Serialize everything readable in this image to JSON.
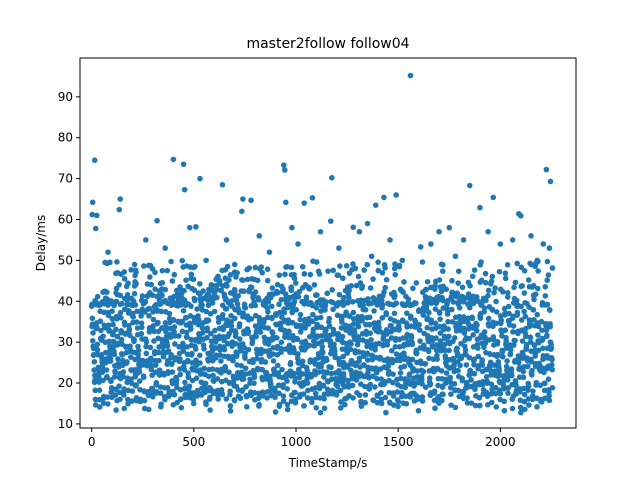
{
  "chart_data": {
    "type": "scatter",
    "title": "master2follow follow04",
    "xlabel": "TimeStamp/s",
    "ylabel": "Delay/ms",
    "xlim": [
      -57,
      2370
    ],
    "ylim": [
      9.0,
      99.5
    ],
    "x_ticks": [
      0,
      500,
      1000,
      1500,
      2000
    ],
    "y_ticks": [
      10,
      20,
      30,
      40,
      50,
      60,
      70,
      80,
      90
    ],
    "grid": false,
    "marker_color": "#1f77b4",
    "band": {
      "x_start": 0,
      "x_end": 2255,
      "period_s": 20,
      "y_low": 15,
      "y_high": 38,
      "note_density": "dense sawtooth band of points between roughly 15 and 42 ms"
    },
    "outliers": [
      {
        "x": 15,
        "y": 74.5
      },
      {
        "x": 5,
        "y": 64.2
      },
      {
        "x": 3,
        "y": 61.2
      },
      {
        "x": 25,
        "y": 61.0
      },
      {
        "x": 20,
        "y": 57.8
      },
      {
        "x": 140,
        "y": 65.0
      },
      {
        "x": 135,
        "y": 62.4
      },
      {
        "x": 400,
        "y": 74.7
      },
      {
        "x": 450,
        "y": 73.5
      },
      {
        "x": 455,
        "y": 67.3
      },
      {
        "x": 530,
        "y": 70.0
      },
      {
        "x": 640,
        "y": 68.5
      },
      {
        "x": 940,
        "y": 73.3
      },
      {
        "x": 945,
        "y": 72.1
      },
      {
        "x": 1175,
        "y": 70.2
      },
      {
        "x": 1560,
        "y": 95.2
      },
      {
        "x": 1490,
        "y": 66.0
      },
      {
        "x": 1430,
        "y": 65.4
      },
      {
        "x": 1850,
        "y": 68.3
      },
      {
        "x": 1965,
        "y": 65.4
      },
      {
        "x": 2225,
        "y": 72.2
      },
      {
        "x": 2245,
        "y": 69.3
      },
      {
        "x": 1080,
        "y": 65.3
      },
      {
        "x": 1040,
        "y": 64.0
      },
      {
        "x": 780,
        "y": 64.7
      },
      {
        "x": 740,
        "y": 65.0
      },
      {
        "x": 735,
        "y": 62.0
      },
      {
        "x": 2090,
        "y": 61.4
      },
      {
        "x": 2100,
        "y": 60.9
      },
      {
        "x": 1900,
        "y": 62.9
      },
      {
        "x": 320,
        "y": 59.7
      },
      {
        "x": 510,
        "y": 58.2
      },
      {
        "x": 1170,
        "y": 59.6
      },
      {
        "x": 1350,
        "y": 59.0
      },
      {
        "x": 1390,
        "y": 63.5
      },
      {
        "x": 1610,
        "y": 53.3
      },
      {
        "x": 1750,
        "y": 58.0
      },
      {
        "x": 2240,
        "y": 53.0
      },
      {
        "x": 1280,
        "y": 58.1
      },
      {
        "x": 950,
        "y": 64.2
      }
    ],
    "noise_points": [
      {
        "x": 80,
        "y": 52
      },
      {
        "x": 210,
        "y": 49
      },
      {
        "x": 265,
        "y": 55
      },
      {
        "x": 360,
        "y": 53
      },
      {
        "x": 480,
        "y": 58
      },
      {
        "x": 560,
        "y": 50
      },
      {
        "x": 660,
        "y": 55
      },
      {
        "x": 700,
        "y": 49
      },
      {
        "x": 820,
        "y": 56
      },
      {
        "x": 870,
        "y": 52
      },
      {
        "x": 980,
        "y": 58
      },
      {
        "x": 1010,
        "y": 54
      },
      {
        "x": 1120,
        "y": 57
      },
      {
        "x": 1210,
        "y": 53
      },
      {
        "x": 1310,
        "y": 57
      },
      {
        "x": 1370,
        "y": 51
      },
      {
        "x": 1460,
        "y": 55
      },
      {
        "x": 1520,
        "y": 50
      },
      {
        "x": 1660,
        "y": 54
      },
      {
        "x": 1700,
        "y": 57
      },
      {
        "x": 1780,
        "y": 51
      },
      {
        "x": 1820,
        "y": 55
      },
      {
        "x": 1940,
        "y": 57
      },
      {
        "x": 2000,
        "y": 54
      },
      {
        "x": 2060,
        "y": 55
      },
      {
        "x": 2150,
        "y": 56
      },
      {
        "x": 2180,
        "y": 50
      },
      {
        "x": 2210,
        "y": 54
      }
    ]
  }
}
